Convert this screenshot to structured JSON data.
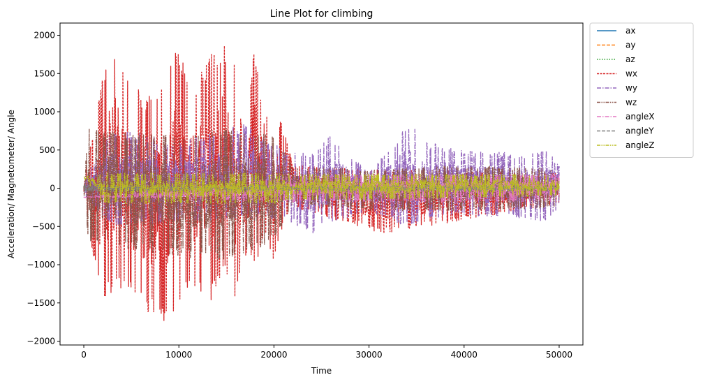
{
  "chart_data": {
    "type": "line",
    "title": "Line Plot for climbing",
    "xlabel": "Time",
    "ylabel": "Acceleration/ Magnetometer/ Angle",
    "xlim": [
      -2500,
      52500
    ],
    "ylim": [
      -2050,
      2160
    ],
    "xticks": [
      0,
      10000,
      20000,
      30000,
      40000,
      50000
    ],
    "yticks": [
      -2000,
      -1500,
      -1000,
      -500,
      0,
      500,
      1000,
      1500,
      2000
    ],
    "grid": false,
    "legend_placement": "outside-top-right",
    "x_range": [
      0,
      50000
    ],
    "series": [
      {
        "name": "ax",
        "color": "#1f77b4",
        "dash": "solid",
        "envelope": [
          [
            0,
            5,
            2
          ],
          [
            50000,
            5,
            2
          ]
        ]
      },
      {
        "name": "ay",
        "color": "#ff7f0e",
        "dash": "dashed",
        "envelope": [
          [
            0,
            5,
            2
          ],
          [
            50000,
            5,
            2
          ]
        ]
      },
      {
        "name": "az",
        "color": "#2ca02c",
        "dash": "dotted",
        "envelope": [
          [
            0,
            5,
            2
          ],
          [
            50000,
            5,
            2
          ]
        ]
      },
      {
        "name": "wx",
        "color": "#d62728",
        "dash": "densedash",
        "envelope": [
          [
            0,
            150,
            -100
          ],
          [
            1000,
            700,
            -900
          ],
          [
            2000,
            1500,
            -1550
          ],
          [
            3300,
            1960,
            -1300
          ],
          [
            4500,
            1550,
            -1400
          ],
          [
            6500,
            1150,
            -1600
          ],
          [
            8300,
            1400,
            -1840
          ],
          [
            9800,
            1890,
            -1600
          ],
          [
            11500,
            1300,
            -1300
          ],
          [
            13300,
            1800,
            -1500
          ],
          [
            14800,
            1900,
            -1000
          ],
          [
            15900,
            1600,
            -1530
          ],
          [
            16700,
            700,
            -900
          ],
          [
            18000,
            1870,
            -1050
          ],
          [
            19000,
            900,
            -600
          ],
          [
            20000,
            1100,
            -1000
          ],
          [
            21000,
            800,
            -450
          ],
          [
            22000,
            300,
            -250
          ],
          [
            31600,
            250,
            -600
          ],
          [
            50000,
            200,
            -200
          ]
        ]
      },
      {
        "name": "wy",
        "color": "#9467bd",
        "dash": "dashdot",
        "envelope": [
          [
            0,
            100,
            -100
          ],
          [
            3000,
            800,
            -500
          ],
          [
            10000,
            600,
            -450
          ],
          [
            17000,
            850,
            -400
          ],
          [
            21000,
            500,
            -400
          ],
          [
            24000,
            450,
            -600
          ],
          [
            26000,
            700,
            -450
          ],
          [
            30000,
            200,
            -300
          ],
          [
            34200,
            850,
            -520
          ],
          [
            36500,
            600,
            -400
          ],
          [
            40000,
            500,
            -350
          ],
          [
            46500,
            450,
            -400
          ],
          [
            48900,
            500,
            -470
          ],
          [
            50000,
            300,
            -200
          ]
        ]
      },
      {
        "name": "wz",
        "color": "#8c564b",
        "dash": "dashdotdot",
        "envelope": [
          [
            0,
            100,
            -50
          ],
          [
            500,
            800,
            -700
          ],
          [
            5000,
            700,
            -800
          ],
          [
            10000,
            700,
            -900
          ],
          [
            15000,
            800,
            -950
          ],
          [
            20000,
            700,
            -700
          ],
          [
            22000,
            300,
            -200
          ],
          [
            30000,
            250,
            -300
          ],
          [
            40000,
            300,
            -300
          ],
          [
            50000,
            250,
            -250
          ]
        ]
      },
      {
        "name": "angleX",
        "color": "#e377c2",
        "dash": "dashdot",
        "envelope": [
          [
            0,
            -115,
            -125
          ],
          [
            20000,
            120,
            -170
          ],
          [
            22000,
            180,
            -180
          ],
          [
            50000,
            180,
            -180
          ]
        ]
      },
      {
        "name": "angleY",
        "color": "#7f7f7f",
        "dash": "dashed",
        "envelope": [
          [
            0,
            40,
            -40
          ],
          [
            50000,
            40,
            -40
          ]
        ]
      },
      {
        "name": "angleZ",
        "color": "#bcbd22",
        "dash": "dashdotdot",
        "envelope": [
          [
            0,
            160,
            140
          ],
          [
            2000,
            200,
            -200
          ],
          [
            20000,
            200,
            -200
          ],
          [
            22000,
            190,
            -150
          ],
          [
            30000,
            190,
            -150
          ],
          [
            50000,
            180,
            -100
          ]
        ]
      }
    ]
  }
}
